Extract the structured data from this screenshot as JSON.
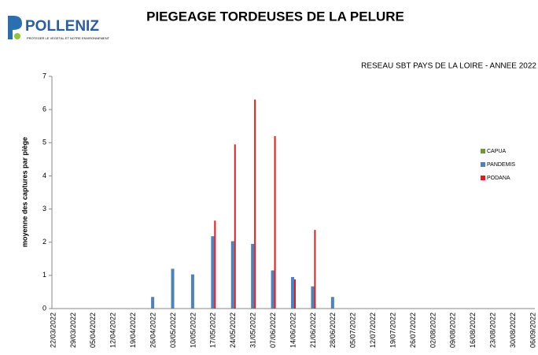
{
  "logo": {
    "name": "POLLENIZ",
    "tagline": "PROTEGER LE VEGETAL ET NOTRE ENVIRONNEMENT"
  },
  "chart_data": {
    "type": "bar",
    "title": "PIEGEAGE TORDEUSES DE LA PELURE",
    "subtitle": "RESEAU SBT PAYS DE LA LOIRE - ANNEE 2022",
    "y_label": "moyenne des captures par piège",
    "categories": [
      "22/03/2022",
      "29/03/2022",
      "05/04/2022",
      "12/04/2022",
      "19/04/2022",
      "26/04/2022",
      "03/05/2022",
      "10/05/2022",
      "17/05/2022",
      "24/05/2022",
      "31/05/2022",
      "07/06/2022",
      "14/06/2022",
      "21/06/2022",
      "28/06/2022",
      "05/07/2022",
      "12/07/2022",
      "19/07/2022",
      "26/07/2022",
      "02/08/2022",
      "09/08/2022",
      "16/08/2022",
      "23/08/2022",
      "30/08/2022",
      "06/09/2022"
    ],
    "series": [
      {
        "name": "CAPUA",
        "color": "#77933c",
        "values": [
          0,
          0,
          0,
          0,
          0,
          0,
          0,
          0,
          0,
          0,
          0,
          0,
          0,
          0,
          0,
          0,
          0,
          0,
          0,
          0,
          0,
          0,
          0,
          0,
          0
        ]
      },
      {
        "name": "PANDEMIS",
        "color": "#4f81bd",
        "values": [
          0,
          0,
          0,
          0,
          0,
          0.35,
          1.2,
          1.03,
          2.18,
          2.03,
          1.95,
          1.15,
          0.95,
          0.67,
          0.35,
          0,
          0,
          0,
          0,
          0,
          0,
          0,
          0,
          0,
          0
        ]
      },
      {
        "name": "PODANA",
        "color": "#e31a1c",
        "values": [
          0,
          0,
          0,
          0,
          0,
          0,
          0,
          0,
          2.65,
          4.95,
          6.3,
          5.2,
          0.88,
          2.37,
          0,
          0,
          0,
          0,
          0,
          0,
          0,
          0,
          0,
          0,
          0
        ]
      }
    ],
    "ylim": [
      0,
      7
    ],
    "yticks": [
      0,
      1,
      2,
      3,
      4,
      5,
      6,
      7
    ],
    "grid": false,
    "legend": "right"
  }
}
